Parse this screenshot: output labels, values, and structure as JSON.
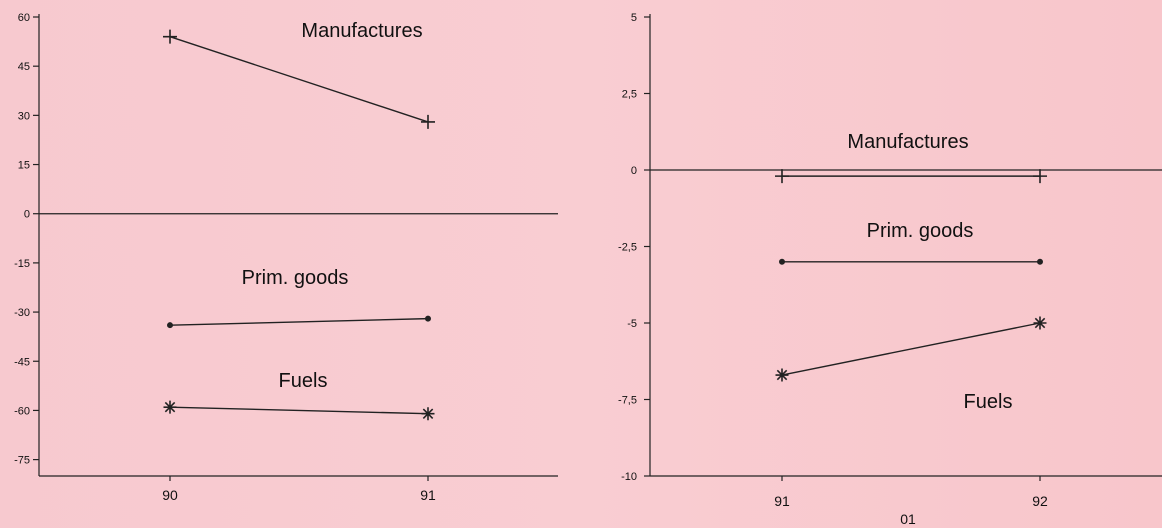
{
  "chart_data": [
    {
      "type": "line",
      "categories": [
        "90",
        "91"
      ],
      "yticks": [
        "60",
        "45",
        "30",
        "15",
        "0",
        "-15",
        "-30",
        "-45",
        "-60",
        "-75"
      ],
      "ylim": [
        -80,
        60
      ],
      "series": [
        {
          "name": "Manufactures",
          "values": [
            54,
            28
          ],
          "marker": "plus"
        },
        {
          "name": "Prim. goods",
          "values": [
            -34,
            -32
          ],
          "marker": "dot"
        },
        {
          "name": "Fuels",
          "values": [
            -59,
            -61
          ],
          "marker": "star"
        }
      ],
      "zero_line": true,
      "xlabel": ""
    },
    {
      "type": "line",
      "categories": [
        "91",
        "92"
      ],
      "yticks": [
        "5",
        "2,5",
        "0",
        "-2,5",
        "-5",
        "-7,5",
        "-10"
      ],
      "ylim": [
        -10,
        5
      ],
      "series": [
        {
          "name": "Manufactures",
          "values": [
            -0.2,
            -0.2
          ],
          "marker": "plus"
        },
        {
          "name": "Prim. goods",
          "values": [
            -3,
            -3
          ],
          "marker": "dot"
        },
        {
          "name": "Fuels",
          "values": [
            -6.7,
            -5
          ],
          "marker": "star"
        }
      ],
      "zero_line": true,
      "xlabel": "01"
    }
  ]
}
